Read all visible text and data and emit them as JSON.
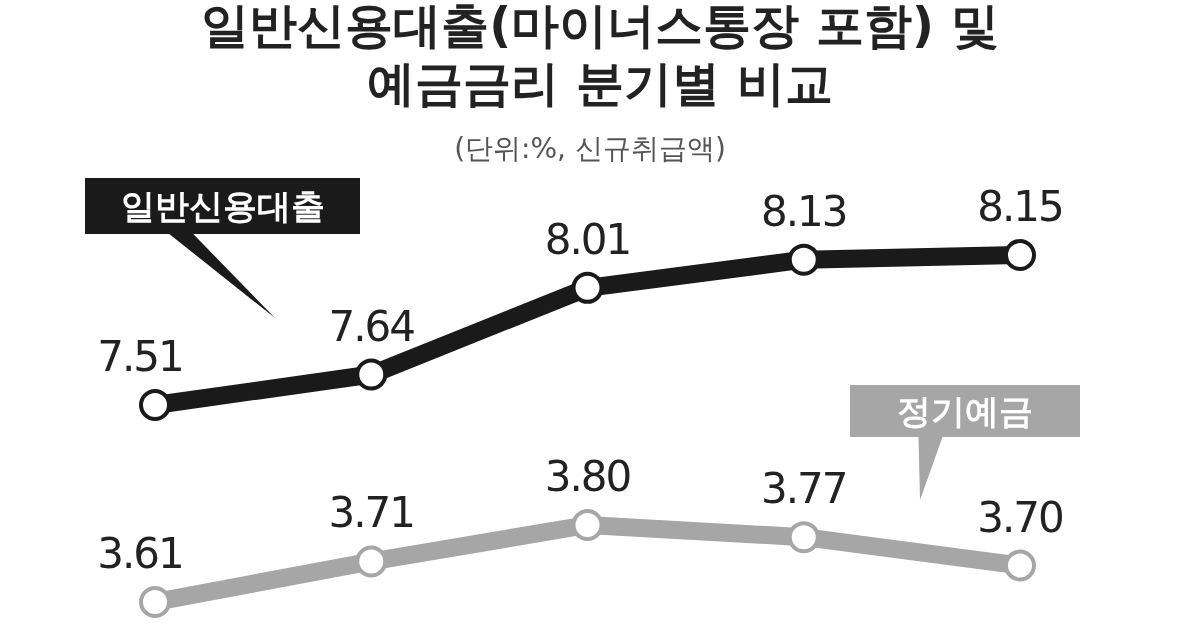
{
  "chart_data": [
    {
      "type": "line",
      "title": "일반신용대출(마이너스통장 포함) 및\n예금금리 분기별 비교",
      "subtitle": "(단위:%, 신규취급액)",
      "categories": [
        null,
        null,
        null,
        null,
        null
      ],
      "series": [
        {
          "name": "일반신용대출",
          "color": "#1a1a1a",
          "values": [
            7.51,
            7.64,
            8.01,
            8.13,
            8.15
          ],
          "value_labels": [
            "7.51",
            "7.64",
            "8.01",
            "8.13",
            "8.15"
          ]
        }
      ],
      "tick_labels": false,
      "legend": false,
      "marker": "circle",
      "line_style": "solid"
    },
    {
      "type": "line",
      "categories": [
        null,
        null,
        null,
        null,
        null
      ],
      "series": [
        {
          "name": "정기예금",
          "color": "#a6a6a6",
          "values": [
            3.61,
            3.71,
            3.8,
            3.77,
            3.7
          ],
          "value_labels": [
            "3.61",
            "3.71",
            "3.80",
            "3.77",
            "3.70"
          ]
        }
      ],
      "tick_labels": false,
      "legend": false,
      "marker": "circle",
      "line_style": "solid"
    }
  ]
}
